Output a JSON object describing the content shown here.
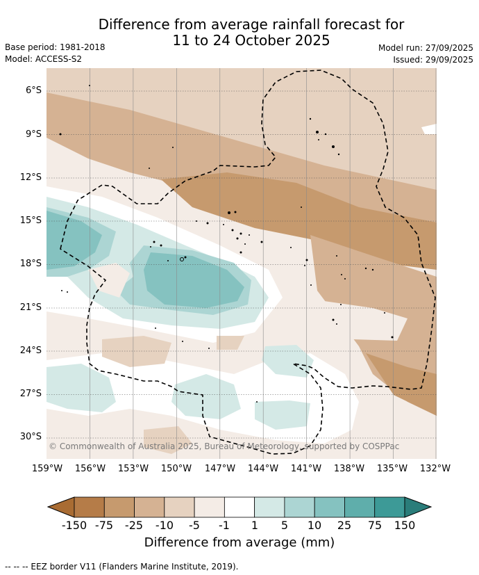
{
  "title_line1": "Difference from average rainfall forecast for",
  "title_line2": "11 to 24 October 2025",
  "base_period": "Base period: 1981-2018",
  "model": "Model: ACCESS-S2",
  "model_run": "Model run: 27/09/2025",
  "issued": "Issued: 29/09/2025",
  "lat_labels": [
    "6°S",
    "9°S",
    "12°S",
    "15°S",
    "18°S",
    "21°S",
    "24°S",
    "27°S",
    "30°S"
  ],
  "lon_labels": [
    "159°W",
    "156°W",
    "153°W",
    "150°W",
    "147°W",
    "144°W",
    "141°W",
    "138°W",
    "135°W",
    "132°W"
  ],
  "copyright": "© Commonwealth of Australia 2025, Bureau of Meteorology, supported by COSPPac",
  "colorbar": {
    "labels": [
      "-150",
      "-75",
      "-25",
      "-10",
      "-5",
      "-1",
      "1",
      "5",
      "10",
      "25",
      "75",
      "150"
    ],
    "colors": [
      "#a96c33",
      "#b57c48",
      "#c69a6e",
      "#d5b293",
      "#e6d2c0",
      "#f4ece6",
      "#ffffff",
      "#d4e9e6",
      "#acd5d3",
      "#85c2c0",
      "#5faeab",
      "#3d9a97",
      "#2a7d7a"
    ],
    "title": "Difference from average (mm)"
  },
  "eez_note": "--  --  -- EEZ border V11 (Flanders Marine Institute, 2019)."
}
